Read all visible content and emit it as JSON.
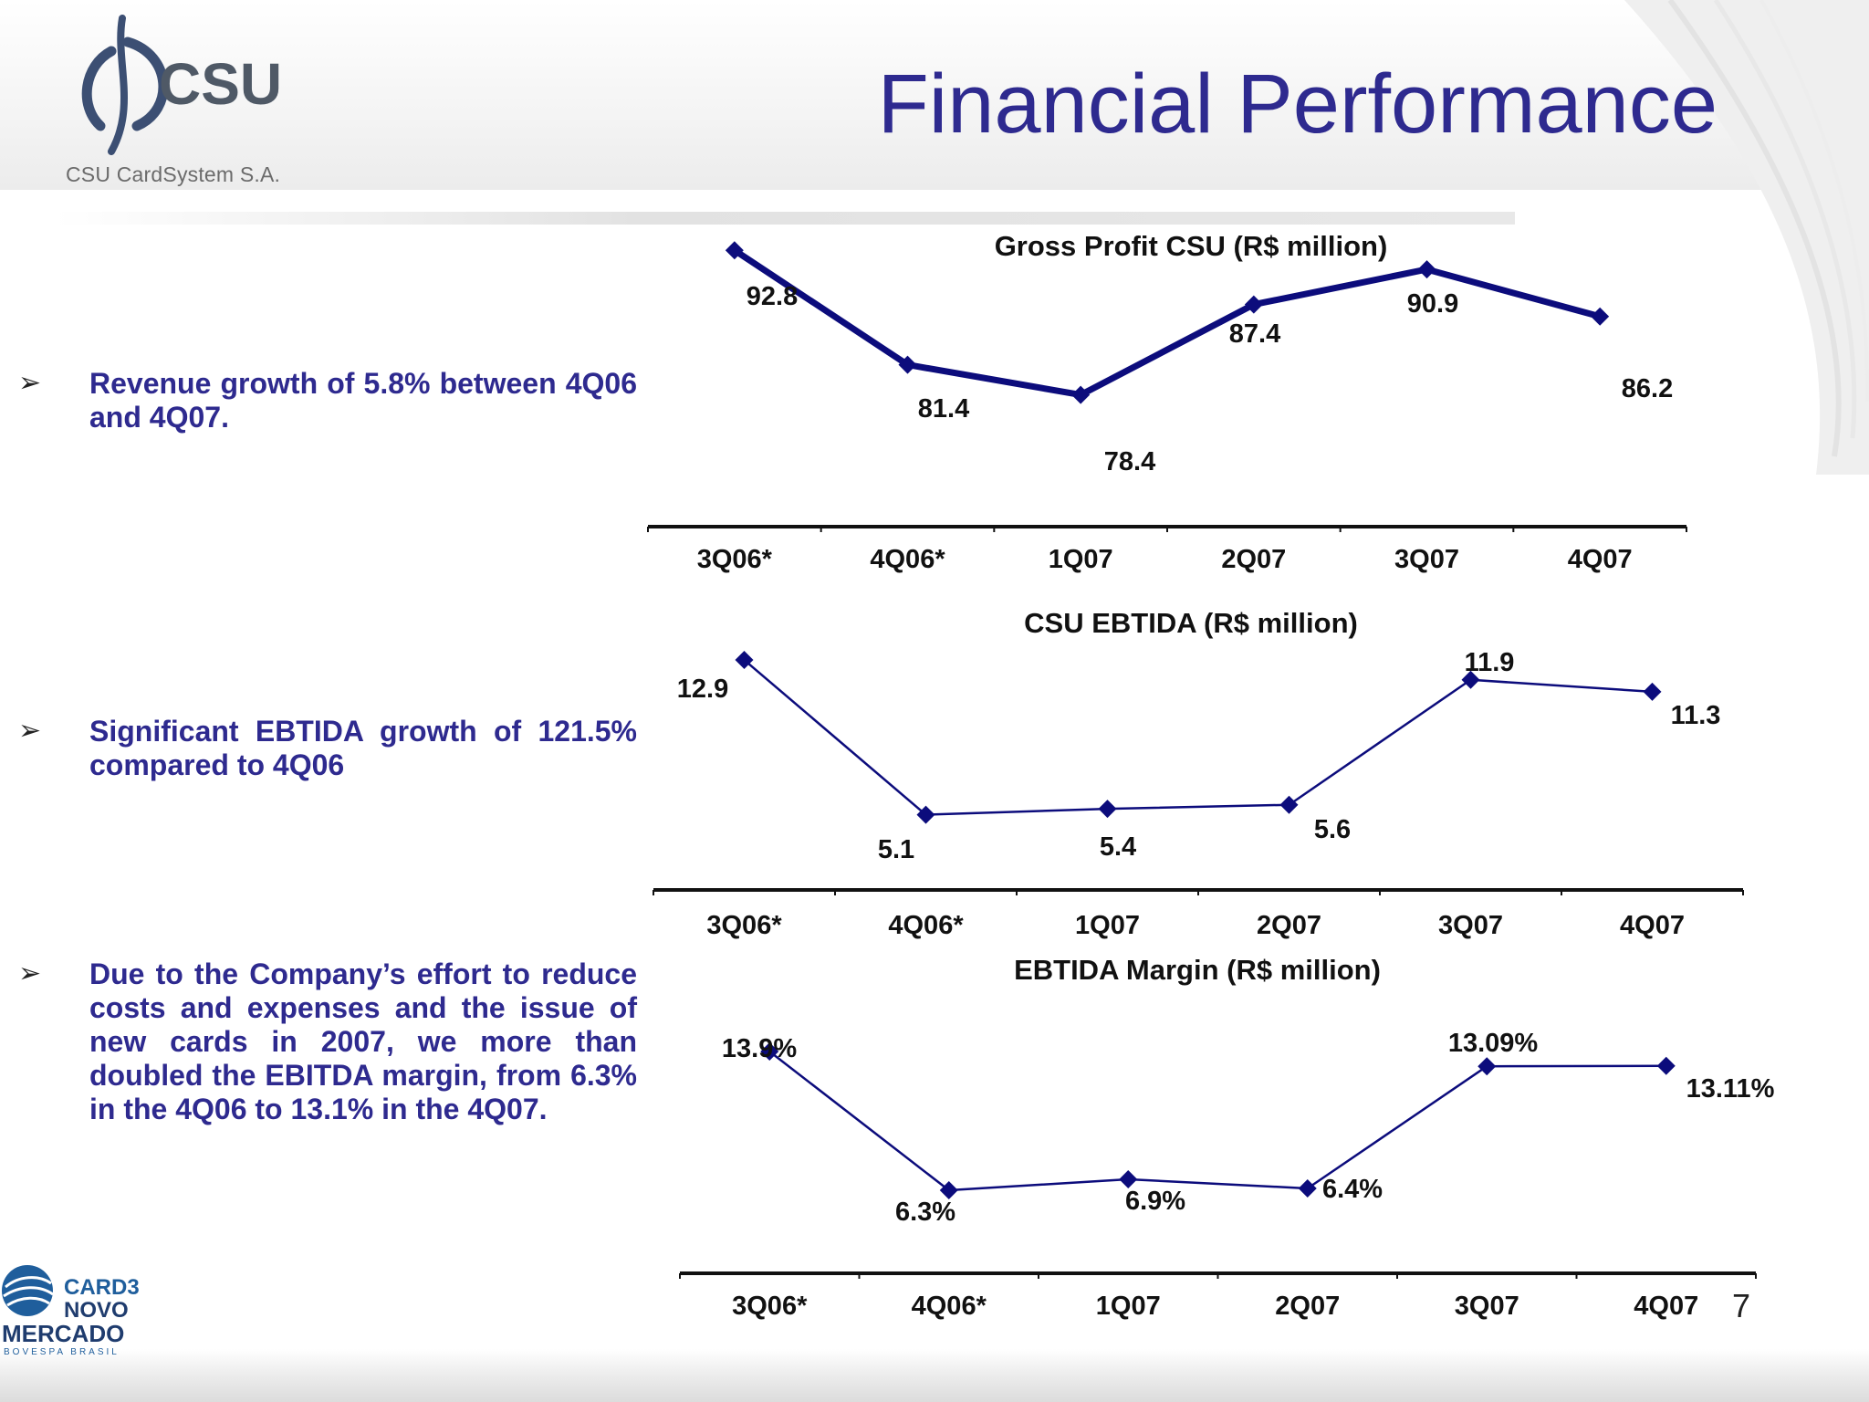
{
  "header": {
    "title": "Financial Performance",
    "company": "CSU CardSystem S.A.",
    "logo_text": "CSU"
  },
  "bullets": [
    "Revenue growth of 5.8% between 4Q06 and 4Q07.",
    "Significant EBTIDA growth of 121.5% compared to 4Q06",
    "Due to the Company’s effort to reduce costs and expenses and the issue of new cards in 2007, we more than doubled the EBITDA margin, from 6.3% in the 4Q06 to 13.1% in the 4Q07."
  ],
  "footer": {
    "badge_top": "CARD3",
    "badge_mid": "NOVO",
    "badge_main": "MERCADO",
    "badge_sub": "BOVESPA BRASIL",
    "page_number": "7"
  },
  "colors": {
    "series": "#0c0c7c",
    "title": "#2e2a8f"
  },
  "chart_data": [
    {
      "type": "line",
      "title": "Gross Profit CSU (R$ million)",
      "categories": [
        "3Q06*",
        "4Q06*",
        "1Q07",
        "2Q07",
        "3Q07",
        "4Q07"
      ],
      "values": [
        92.8,
        81.4,
        78.4,
        87.4,
        90.9,
        86.2
      ],
      "data_labels": [
        "92.8",
        "81.4",
        "78.4",
        "87.4",
        "90.9",
        "86.2"
      ],
      "ylim": [
        65,
        95
      ],
      "grid": false,
      "legend": "none"
    },
    {
      "type": "line",
      "title": "CSU EBTIDA (R$ million)",
      "categories": [
        "3Q06*",
        "4Q06*",
        "1Q07",
        "2Q07",
        "3Q07",
        "4Q07"
      ],
      "values": [
        12.9,
        5.1,
        5.4,
        5.6,
        11.9,
        11.3
      ],
      "data_labels": [
        "12.9",
        "5.1",
        "5.4",
        "5.6",
        "11.9",
        "11.3"
      ],
      "ylim": [
        2,
        13.5
      ],
      "grid": false,
      "legend": "none"
    },
    {
      "type": "line",
      "title": "EBTIDA Margin (R$ million)",
      "categories": [
        "3Q06*",
        "4Q06*",
        "1Q07",
        "2Q07",
        "3Q07",
        "4Q07"
      ],
      "values": [
        13.9,
        6.3,
        6.9,
        6.4,
        13.09,
        13.11
      ],
      "data_labels": [
        "13.9%",
        "6.3%",
        "6.9%",
        "6.4%",
        "13.09%",
        "13.11%"
      ],
      "ylim": [
        3,
        16
      ],
      "grid": false,
      "legend": "none"
    }
  ]
}
